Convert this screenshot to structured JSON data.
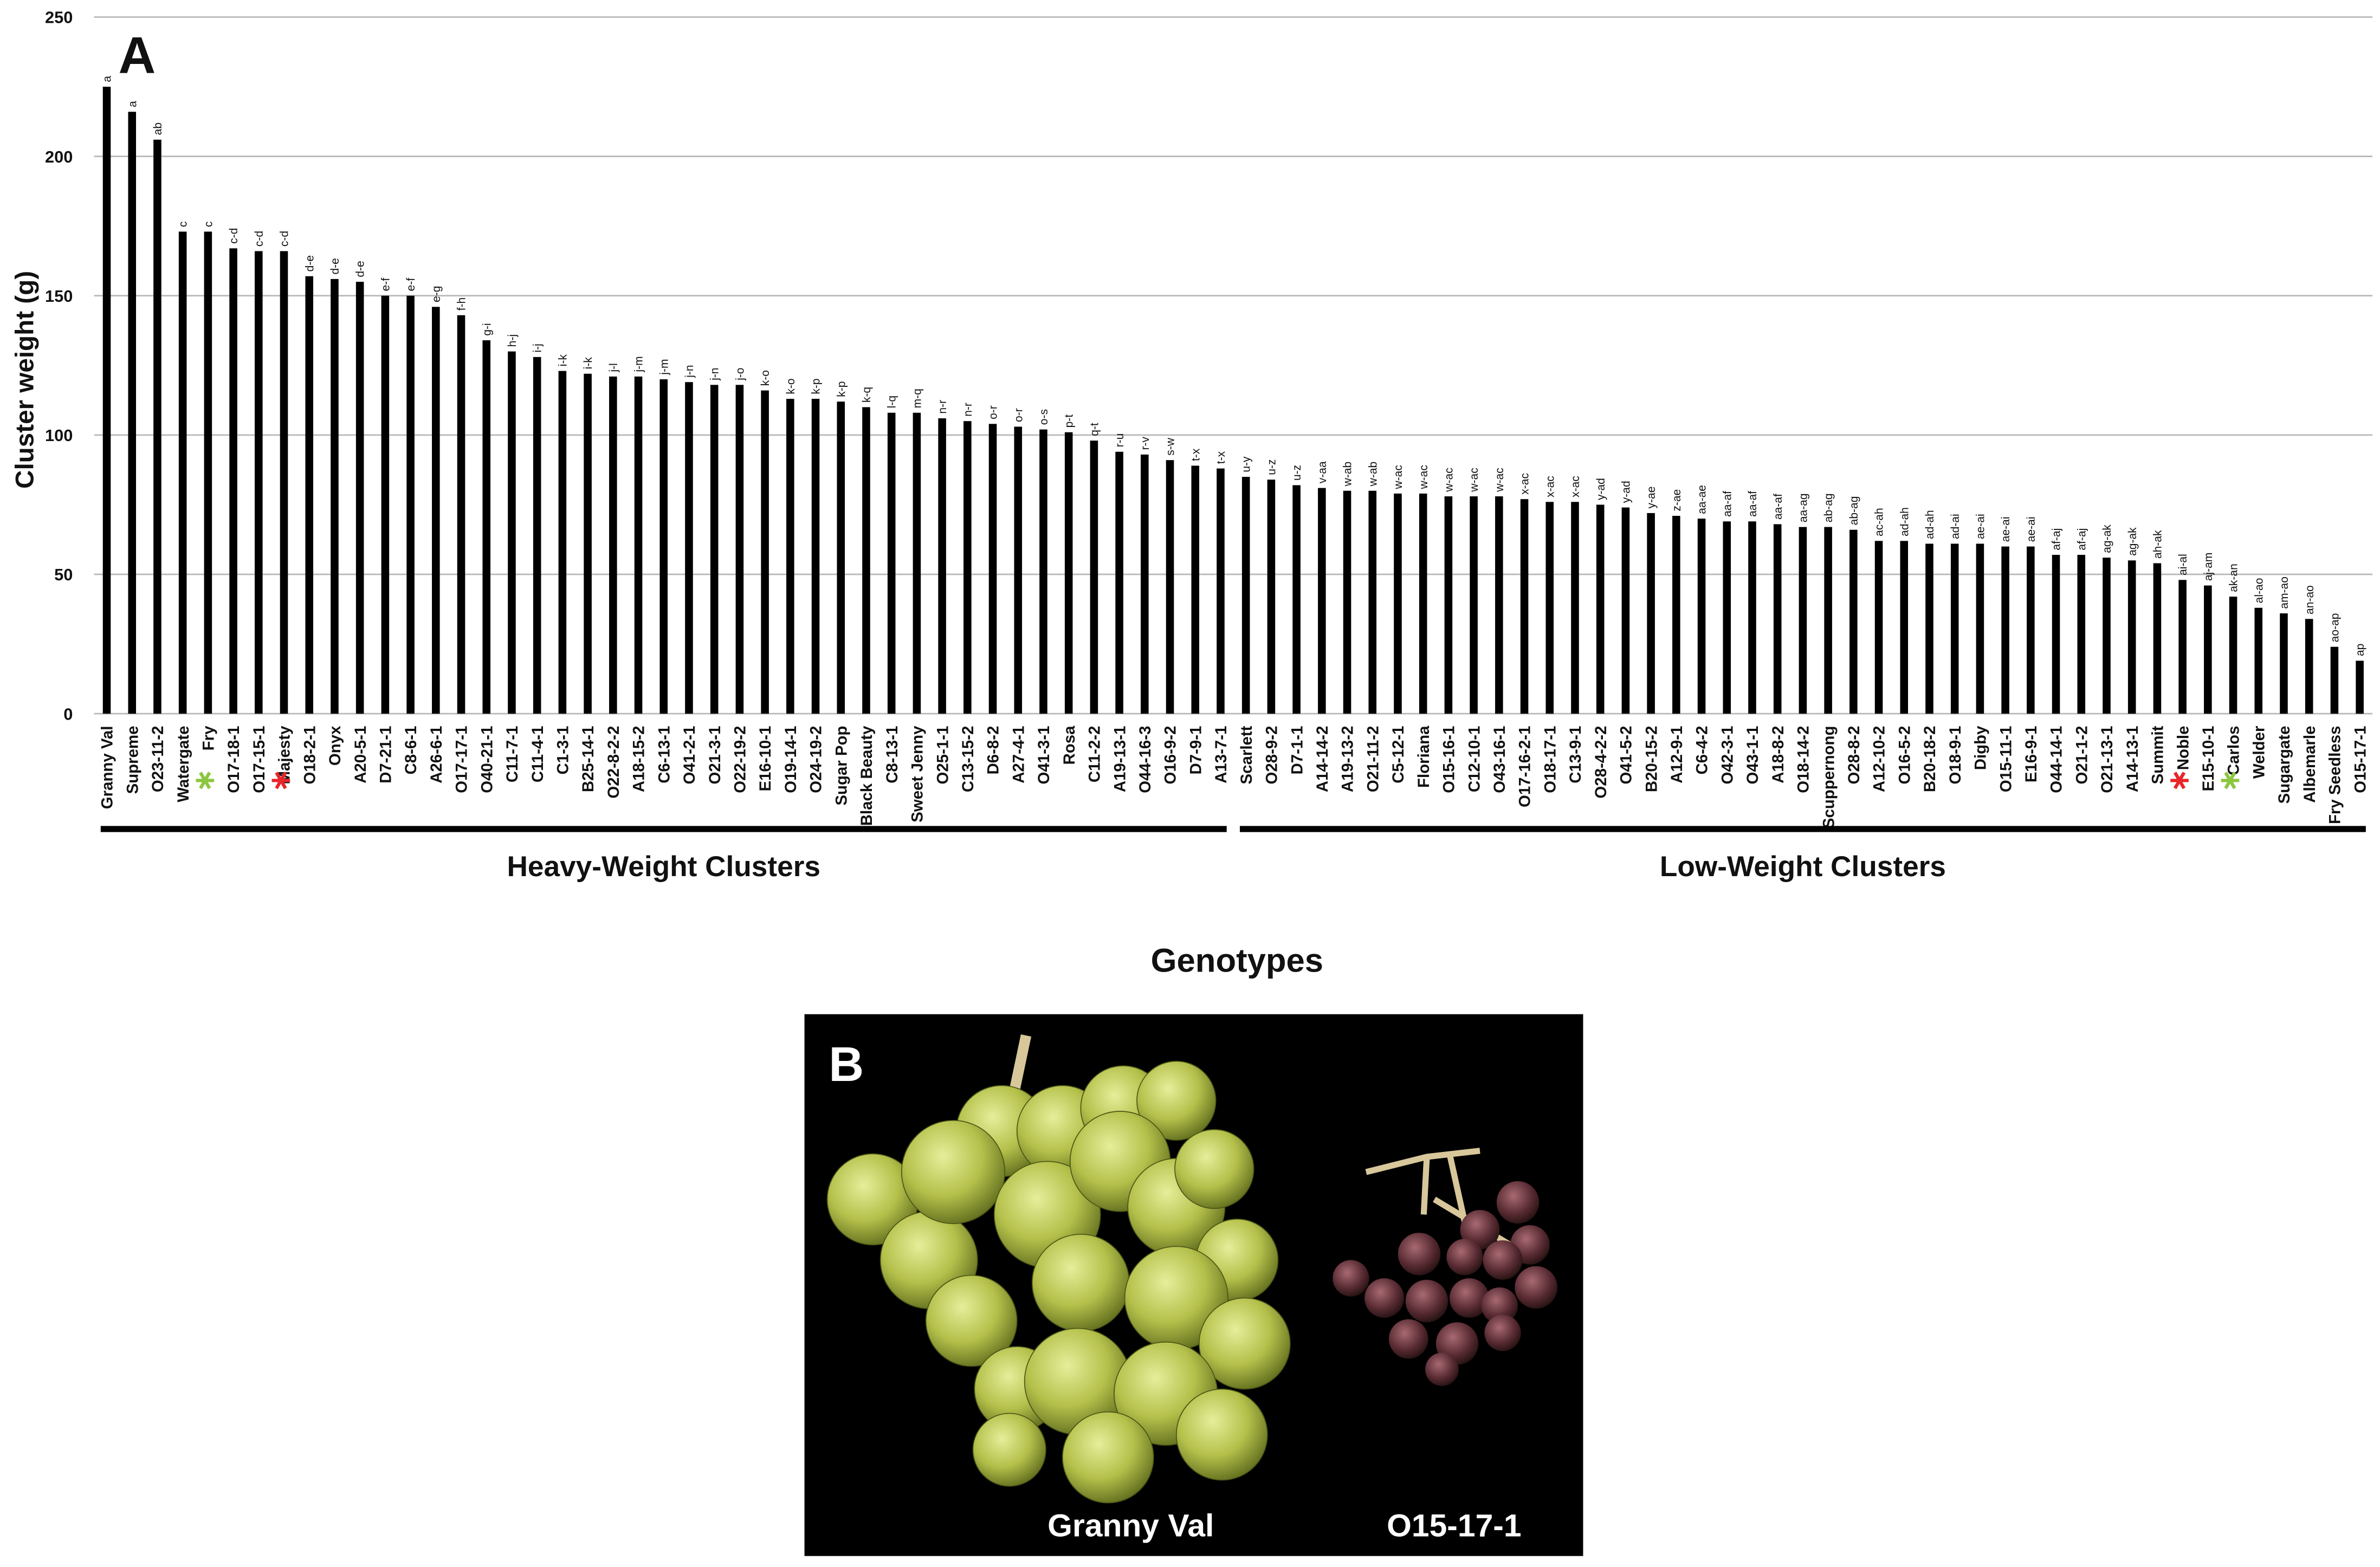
{
  "chart_data": {
    "type": "bar",
    "panel_label": "A",
    "y_label": "Cluster weight (g)",
    "x_label": "Genotypes",
    "color": "#000000",
    "grid": true,
    "ylim": [
      0,
      250
    ],
    "yticks": [
      0,
      50,
      100,
      150,
      200,
      250
    ],
    "categories": [
      "Granny Val",
      "Supreme",
      "O23-11-2",
      "Watergate",
      "Fry",
      "O17-18-1",
      "O17-15-1",
      "Majesty",
      "O18-2-1",
      "Onyx",
      "A20-5-1",
      "D7-21-1",
      "C8-6-1",
      "A26-6-1",
      "O17-17-1",
      "O40-21-1",
      "C11-7-1",
      "C11-4-1",
      "C1-3-1",
      "B25-14-1",
      "O22-8-2-2",
      "A18-15-2",
      "C6-13-1",
      "O41-2-1",
      "O21-3-1",
      "O22-19-2",
      "E16-10-1",
      "O19-14-1",
      "O24-19-2",
      "Sugar Pop",
      "Black Beauty",
      "C8-13-1",
      "Sweet Jenny",
      "O25-1-1",
      "C13-15-2",
      "D6-8-2",
      "A27-4-1",
      "O41-3-1",
      "Rosa",
      "C11-2-2",
      "A19-13-1",
      "O44-16-3",
      "O16-9-2",
      "D7-9-1",
      "A13-7-1",
      "Scarlett",
      "O28-9-2",
      "D7-1-1",
      "A14-14-2",
      "A19-13-2",
      "O21-11-2",
      "C5-12-1",
      "Floriana",
      "O15-16-1",
      "C12-10-1",
      "O43-16-1",
      "O17-16-2-1",
      "O18-17-1",
      "C13-9-1",
      "O28-4-2-2",
      "O41-5-2",
      "B20-15-2",
      "A12-9-1",
      "C6-4-2",
      "O42-3-1",
      "O43-1-1",
      "A18-8-2",
      "O18-14-2",
      "Scuppernong",
      "O28-8-2",
      "A12-10-2",
      "O16-5-2",
      "B20-18-2",
      "O18-9-1",
      "Digby",
      "O15-11-1",
      "E16-9-1",
      "O44-14-1",
      "O21-1-2",
      "O21-13-1",
      "A14-13-1",
      "Summit",
      "Noble",
      "E15-10-1",
      "Carlos",
      "Welder",
      "Sugargate",
      "Albemarle",
      "Fry Seedless",
      "O15-17-1"
    ],
    "values": [
      225,
      216,
      206,
      173,
      173,
      167,
      166,
      166,
      157,
      156,
      155,
      150,
      150,
      146,
      143,
      134,
      130,
      128,
      123,
      122,
      121,
      121,
      120,
      119,
      118,
      118,
      116,
      113,
      113,
      112,
      110,
      108,
      108,
      106,
      105,
      104,
      103,
      102,
      101,
      98,
      94,
      93,
      91,
      89,
      88,
      85,
      84,
      82,
      81,
      80,
      80,
      79,
      79,
      78,
      78,
      78,
      77,
      76,
      76,
      75,
      74,
      72,
      71,
      70,
      69,
      69,
      68,
      67,
      67,
      66,
      62,
      62,
      61,
      61,
      61,
      60,
      60,
      57,
      57,
      56,
      55,
      54,
      48,
      46,
      42,
      38,
      36,
      34,
      24,
      19
    ],
    "letters": [
      "a",
      "a",
      "ab",
      "c",
      "c",
      "c-d",
      "c-d",
      "c-d",
      "d-e",
      "d-e",
      "d-e",
      "e-f",
      "e-f",
      "e-g",
      "f-h",
      "g-i",
      "h-j",
      "i-j",
      "i-k",
      "i-k",
      "j-l",
      "j-m",
      "j-m",
      "j-n",
      "j-n",
      "j-o",
      "k-o",
      "k-o",
      "k-p",
      "k-p",
      "k-q",
      "l-q",
      "m-q",
      "n-r",
      "n-r",
      "o-r",
      "o-r",
      "o-s",
      "p-t",
      "q-t",
      "r-u",
      "r-v",
      "s-w",
      "t-x",
      "t-x",
      "u-y",
      "u-z",
      "u-z",
      "v-aa",
      "w-ab",
      "w-ab",
      "w-ac",
      "w-ac",
      "w-ac",
      "w-ac",
      "w-ac",
      "x-ac",
      "x-ac",
      "x-ac",
      "y-ad",
      "y-ad",
      "y-ae",
      "z-ae",
      "aa-ae",
      "aa-af",
      "aa-af",
      "aa-af",
      "aa-ag",
      "ab-ag",
      "ab-ag",
      "ac-ah",
      "ad-ah",
      "ad-ah",
      "ad-ai",
      "ae-ai",
      "ae-ai",
      "ae-ai",
      "af-aj",
      "af-aj",
      "ag-ak",
      "ag-ak",
      "ah-ak",
      "ai-al",
      "aj-am",
      "ak-an",
      "al-ao",
      "am-ao",
      "an-ao",
      "ao-ap",
      "ap"
    ],
    "highlights": [
      {
        "category": "Fry",
        "color": "#8cc63f"
      },
      {
        "category": "Majesty",
        "color": "#e8252a"
      },
      {
        "category": "Noble",
        "color": "#e8252a"
      },
      {
        "category": "Carlos",
        "color": "#8cc63f"
      }
    ],
    "groups": [
      {
        "name": "Heavy-Weight Clusters",
        "first": "Granny Val",
        "last": "A13-7-1"
      },
      {
        "name": "Low-Weight Clusters",
        "first": "Scarlett",
        "last": "O15-17-1"
      }
    ]
  },
  "photo": {
    "panel_label": "B",
    "captions": [
      "Granny Val",
      "O15-17-1"
    ]
  }
}
